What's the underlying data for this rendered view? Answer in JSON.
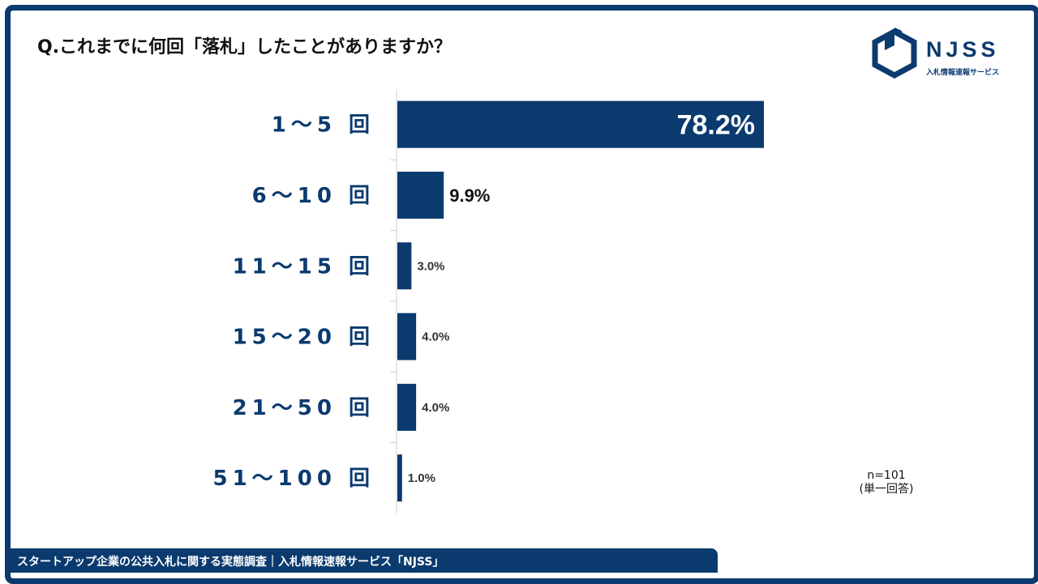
{
  "question": "Q.これまでに何回「落札」したことがありますか？",
  "logo": {
    "name": "NJSS",
    "subtitle": "入札情報速報サービス"
  },
  "note": {
    "n": "n=101",
    "type": "(単一回答)"
  },
  "footer": "スタートアップ企業の公共入札に関する実態調査｜入札情報速報サービス「NJSS」",
  "colors": {
    "bar": "#0b3a6e",
    "label": "#0b3a6e",
    "frame": "#0b3a6e"
  },
  "chart_data": {
    "type": "bar",
    "orientation": "horizontal",
    "categories": [
      "1～5 回",
      "6～10 回",
      "11～15 回",
      "15～20 回",
      "21～50 回",
      "51～100 回"
    ],
    "series": [
      {
        "values": [
          78.2,
          9.9,
          3.0,
          4.0,
          4.0,
          1.0
        ]
      }
    ],
    "value_labels": [
      "78.2%",
      "9.9%",
      "3.0%",
      "4.0%",
      "4.0%",
      "1.0%"
    ],
    "xlim": [
      0,
      100
    ],
    "grid": false,
    "legend": "none"
  }
}
